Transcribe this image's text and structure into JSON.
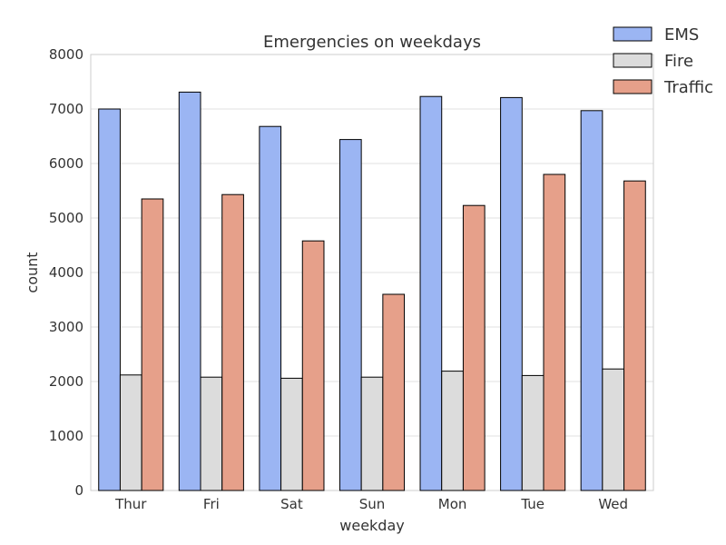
{
  "chart_data": {
    "type": "bar",
    "title": "Emergencies on weekdays",
    "xlabel": "weekday",
    "ylabel": "count",
    "categories": [
      "Thur",
      "Fri",
      "Sat",
      "Sun",
      "Mon",
      "Tue",
      "Wed"
    ],
    "series": [
      {
        "name": "EMS",
        "color": "#9bb5f3",
        "values": [
          7000,
          7310,
          6680,
          6440,
          7230,
          7210,
          6970
        ]
      },
      {
        "name": "Fire",
        "color": "#dcdcdc",
        "values": [
          2120,
          2080,
          2060,
          2080,
          2190,
          2110,
          2230
        ]
      },
      {
        "name": "Traffic",
        "color": "#e6a08a",
        "values": [
          5350,
          5430,
          4580,
          3600,
          5230,
          5800,
          5680
        ]
      }
    ],
    "ylim": [
      0,
      8000
    ],
    "yticks": [
      0,
      1000,
      2000,
      3000,
      4000,
      5000,
      6000,
      7000,
      8000
    ],
    "grid": "horizontal",
    "legend_position": "top-right"
  }
}
